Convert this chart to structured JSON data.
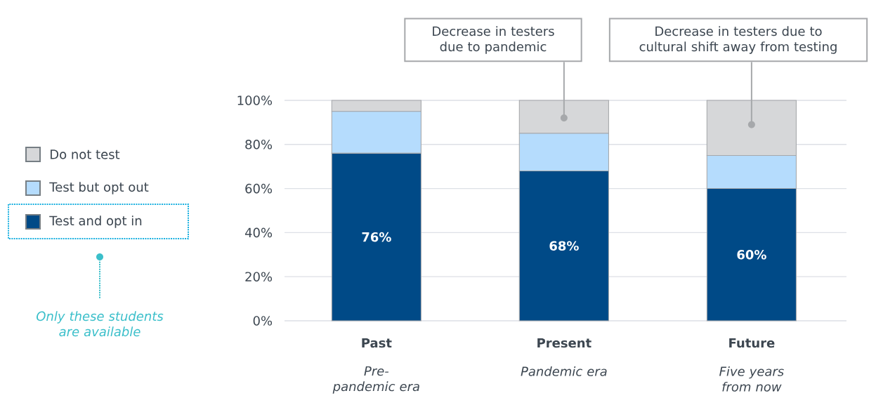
{
  "chart_data": {
    "type": "bar",
    "stacked": true,
    "categories": [
      "Past",
      "Present",
      "Future"
    ],
    "series": [
      {
        "name": "Test and opt in",
        "color": "#004a87",
        "values": [
          76,
          68,
          60
        ],
        "value_labels": [
          "76%",
          "68%",
          "60%"
        ]
      },
      {
        "name": "Test but opt out",
        "color": "#b5dcfd",
        "values": [
          19,
          17,
          15
        ]
      },
      {
        "name": "Do not test",
        "color": "#d6d7d9",
        "values": [
          5,
          15,
          25
        ]
      }
    ],
    "ylim": [
      0,
      100
    ],
    "yticks": [
      {
        "value": 0,
        "label": "0%"
      },
      {
        "value": 20,
        "label": "20%"
      },
      {
        "value": 40,
        "label": "40%"
      },
      {
        "value": 60,
        "label": "60%"
      },
      {
        "value": 80,
        "label": "80%"
      },
      {
        "value": 100,
        "label": "100%"
      }
    ],
    "grid": "y",
    "legend": "left",
    "annotations": [
      "Pre-pandemic era",
      "Pandemic era",
      "Five years from now",
      {
        "text": "Decrease in testers due to pandemic",
        "x": "Present",
        "y": 92
      },
      {
        "text": "Decrease in testers due to cultural shift away from testing",
        "x": "Future",
        "y": 89
      },
      "Only these students are available"
    ]
  }
}
